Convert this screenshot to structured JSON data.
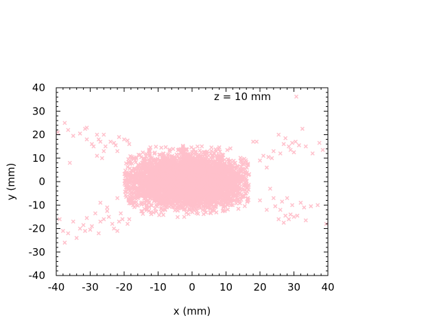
{
  "chart_data": {
    "type": "scatter",
    "xlabel": "x (mm)",
    "ylabel": "y (mm)",
    "xlim": [
      -40,
      40
    ],
    "ylim": [
      -40,
      40
    ],
    "xticks": [
      -40,
      -30,
      -20,
      -10,
      0,
      10,
      20,
      30,
      40
    ],
    "yticks": [
      -40,
      -30,
      -20,
      -10,
      0,
      10,
      20,
      30,
      40
    ],
    "xtick_labels": [
      "-40",
      "-30",
      "-20",
      "-10",
      "0",
      "10",
      "20",
      "30",
      "40"
    ],
    "ytick_labels": [
      "-40",
      "-30",
      "-20",
      "-10",
      "0",
      "10",
      "20",
      "30",
      "40"
    ],
    "grid": false,
    "legend": {
      "position": "top-right"
    },
    "marker": "x",
    "series": [
      {
        "name": "z = 10 mm",
        "color": "#ffc0cb",
        "core": {
          "x_range": [
            -20,
            19
          ],
          "y_range": [
            -17,
            16
          ],
          "count": 5200
        },
        "outliers": [
          [
            -39.5,
            21
          ],
          [
            -37.5,
            25
          ],
          [
            -36.5,
            22
          ],
          [
            -35,
            19.5
          ],
          [
            -33,
            20.5
          ],
          [
            -31.5,
            22.5
          ],
          [
            -31,
            23
          ],
          [
            -31,
            18
          ],
          [
            -29.5,
            16
          ],
          [
            -29,
            15
          ],
          [
            -28,
            20
          ],
          [
            -27.5,
            18
          ],
          [
            -27,
            17
          ],
          [
            -26,
            20
          ],
          [
            -26,
            13
          ],
          [
            -25.5,
            15
          ],
          [
            -24,
            17
          ],
          [
            -23,
            16.5
          ],
          [
            -22.5,
            15.5
          ],
          [
            -21.5,
            19
          ],
          [
            -20,
            18
          ],
          [
            -19,
            17.5
          ],
          [
            -18.5,
            16
          ],
          [
            -28,
            11
          ],
          [
            -26.5,
            10
          ],
          [
            -22,
            13
          ],
          [
            -36,
            8
          ],
          [
            -39,
            -16
          ],
          [
            -38,
            -21
          ],
          [
            -37.5,
            -26
          ],
          [
            -36.5,
            -22
          ],
          [
            -35,
            -17
          ],
          [
            -34,
            -24
          ],
          [
            -33,
            -20
          ],
          [
            -32,
            -18.5
          ],
          [
            -31.5,
            -21
          ],
          [
            -31,
            -15.5
          ],
          [
            -30,
            -20.5
          ],
          [
            -29.5,
            -19
          ],
          [
            -28.5,
            -13.5
          ],
          [
            -27.5,
            -22
          ],
          [
            -27,
            -17
          ],
          [
            -26,
            -16
          ],
          [
            -25,
            -12.5
          ],
          [
            -24.5,
            -15
          ],
          [
            -23.5,
            -18
          ],
          [
            -23,
            -20
          ],
          [
            -22,
            -21
          ],
          [
            -21.5,
            -17
          ],
          [
            -21,
            -13.5
          ],
          [
            -20.5,
            -16
          ],
          [
            -19,
            -18
          ],
          [
            -18.5,
            -16
          ],
          [
            -27,
            -9
          ],
          [
            -25,
            -11
          ],
          [
            -22,
            -7
          ],
          [
            18,
            17
          ],
          [
            19,
            17
          ],
          [
            21,
            11
          ],
          [
            22.5,
            10.5
          ],
          [
            23.5,
            10
          ],
          [
            24,
            13
          ],
          [
            25.5,
            20
          ],
          [
            27,
            16
          ],
          [
            27.5,
            18.5
          ],
          [
            28.5,
            15
          ],
          [
            29,
            13.5
          ],
          [
            29.5,
            16.5
          ],
          [
            30,
            12.5
          ],
          [
            30.5,
            17
          ],
          [
            31.5,
            15.5
          ],
          [
            32.5,
            22.5
          ],
          [
            33.5,
            15
          ],
          [
            35.5,
            12
          ],
          [
            37.5,
            16.5
          ],
          [
            38.5,
            13.5
          ],
          [
            26,
            12
          ],
          [
            22,
            6
          ],
          [
            20,
            9
          ],
          [
            20,
            -8
          ],
          [
            22,
            -12
          ],
          [
            23,
            -3
          ],
          [
            24,
            -7
          ],
          [
            24.5,
            -10.5
          ],
          [
            25.5,
            -16
          ],
          [
            26,
            -12
          ],
          [
            26.5,
            -8.5
          ],
          [
            27,
            -17.5
          ],
          [
            27.5,
            -14.5
          ],
          [
            28,
            -7
          ],
          [
            28.5,
            -16
          ],
          [
            29,
            -14
          ],
          [
            29.5,
            -10
          ],
          [
            30,
            -15
          ],
          [
            31,
            -14.5
          ],
          [
            32,
            -9
          ],
          [
            33,
            -11
          ],
          [
            33.5,
            -16.5
          ],
          [
            35,
            -10.5
          ],
          [
            37,
            -10
          ],
          [
            39.5,
            -18
          ]
        ]
      }
    ]
  }
}
